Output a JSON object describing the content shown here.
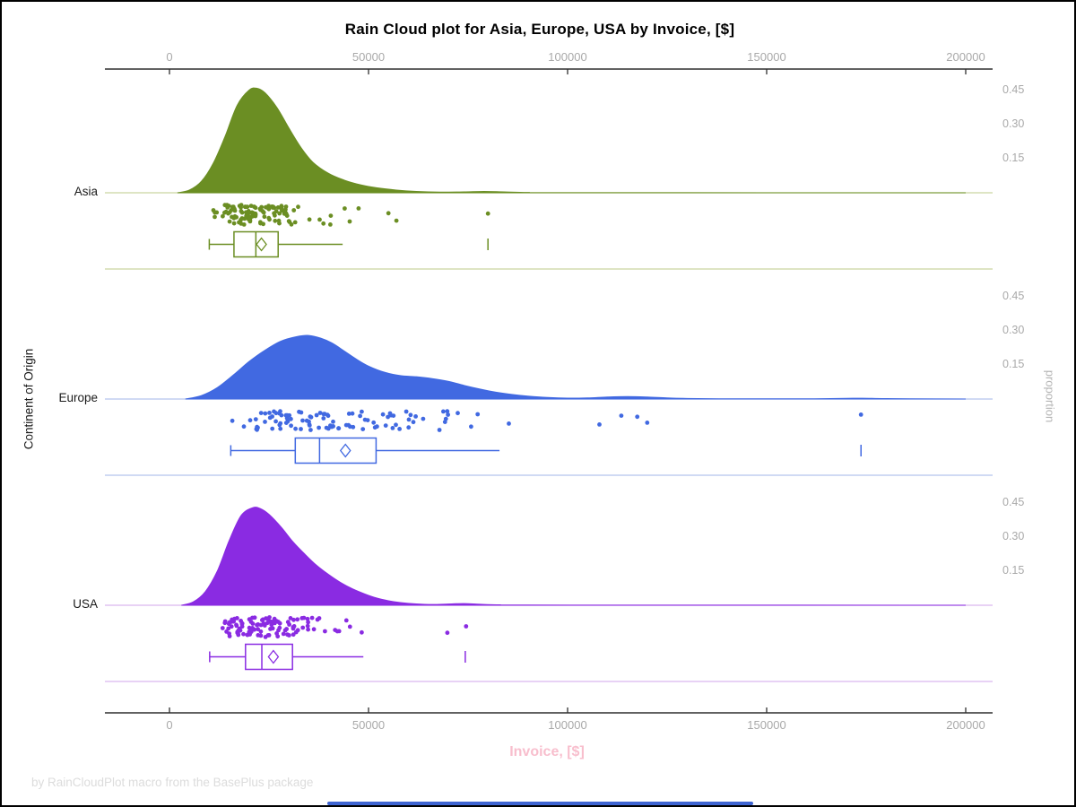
{
  "footer": "by RainCloudPlot macro from the BasePlus package",
  "style": {
    "tick_label_color": "#a9a9a9",
    "axis_line_color": "#2f2f2f",
    "title_color": "#000000",
    "x_label_color": "#f8becd",
    "footer_color": "#dcdcdc",
    "scrollbar_color": "#3e64d1",
    "border_color": "#000000",
    "background": "#ffffff"
  },
  "chart_data": {
    "type": "raincloud (half-violin density + jittered points + boxplot)",
    "title": "Rain Cloud plot for Asia, Europe, USA by Invoice, [$]",
    "xlabel": "Invoice, [$]",
    "ylabel_left": "Continent of Origin",
    "ylabel_right": "proportion",
    "xlim": [
      0,
      200000
    ],
    "x_ticks": [
      0,
      50000,
      100000,
      150000,
      200000
    ],
    "x_tick_labels": [
      "0",
      "50000",
      "100000",
      "150000",
      "200000"
    ],
    "proportion_tick_labels": [
      "0.45",
      "0.30",
      "0.15"
    ],
    "categories": [
      "Asia",
      "Europe",
      "USA"
    ],
    "grid": false,
    "legend": false,
    "series": [
      {
        "name": "Asia",
        "color": "#6b8e23",
        "light_color": "#c9d5a0",
        "density_peak": {
          "x": 21000,
          "proportion": 0.46
        },
        "density": [
          [
            2000,
            0
          ],
          [
            5000,
            0.012
          ],
          [
            8000,
            0.05
          ],
          [
            11000,
            0.13
          ],
          [
            14000,
            0.25
          ],
          [
            17000,
            0.385
          ],
          [
            20000,
            0.452
          ],
          [
            22000,
            0.46
          ],
          [
            24000,
            0.44
          ],
          [
            27000,
            0.375
          ],
          [
            30000,
            0.285
          ],
          [
            33000,
            0.2
          ],
          [
            36000,
            0.135
          ],
          [
            40000,
            0.085
          ],
          [
            44000,
            0.055
          ],
          [
            48000,
            0.035
          ],
          [
            52000,
            0.022
          ],
          [
            57000,
            0.012
          ],
          [
            62000,
            0.006
          ],
          [
            68000,
            0.003
          ],
          [
            74000,
            0.004
          ],
          [
            79000,
            0.006
          ],
          [
            84000,
            0.004
          ],
          [
            90000,
            0.0015
          ],
          [
            100000,
            0.0005
          ],
          [
            200000,
            0
          ]
        ],
        "box": {
          "whisker_low": 10000,
          "q1": 16200,
          "median": 21700,
          "mean": 23100,
          "q3": 27300,
          "whisker_high": 43500,
          "outliers": [
            80000
          ]
        },
        "rain": {
          "n": 112,
          "log_mu": 10.0,
          "log_sigma": 0.3,
          "clip": [
            10000,
            58000
          ],
          "extra_points": [
            44000,
            47500,
            55000,
            57000,
            80000
          ],
          "seed": 11
        }
      },
      {
        "name": "Europe",
        "color": "#4169e1",
        "light_color": "#b3c3ee",
        "density_peak": {
          "x": 35000,
          "proportion": 0.28
        },
        "density": [
          [
            4000,
            0
          ],
          [
            8000,
            0.015
          ],
          [
            12000,
            0.05
          ],
          [
            16000,
            0.105
          ],
          [
            20000,
            0.165
          ],
          [
            24000,
            0.215
          ],
          [
            28000,
            0.255
          ],
          [
            32000,
            0.275
          ],
          [
            35000,
            0.28
          ],
          [
            38000,
            0.268
          ],
          [
            41000,
            0.245
          ],
          [
            44000,
            0.21
          ],
          [
            47000,
            0.175
          ],
          [
            50000,
            0.145
          ],
          [
            54000,
            0.118
          ],
          [
            58000,
            0.103
          ],
          [
            62000,
            0.098
          ],
          [
            66000,
            0.09
          ],
          [
            70000,
            0.078
          ],
          [
            74000,
            0.06
          ],
          [
            78000,
            0.044
          ],
          [
            82000,
            0.03
          ],
          [
            86000,
            0.02
          ],
          [
            90000,
            0.013
          ],
          [
            95000,
            0.007
          ],
          [
            100000,
            0.004
          ],
          [
            105000,
            0.005
          ],
          [
            110000,
            0.009
          ],
          [
            115000,
            0.011
          ],
          [
            120000,
            0.009
          ],
          [
            125000,
            0.005
          ],
          [
            130000,
            0.0025
          ],
          [
            138000,
            0.001
          ],
          [
            150000,
            0.0008
          ],
          [
            162000,
            0.0012
          ],
          [
            170000,
            0.0028
          ],
          [
            174000,
            0.0035
          ],
          [
            179000,
            0.002
          ],
          [
            186000,
            0.0008
          ],
          [
            200000,
            0
          ]
        ],
        "box": {
          "whisker_low": 15400,
          "q1": 31600,
          "median": 37700,
          "mean": 44200,
          "q3": 51900,
          "whisker_high": 82900,
          "outliers": [
            173700
          ]
        },
        "rain": {
          "n": 100,
          "log_mu": 10.56,
          "log_sigma": 0.4,
          "clip": [
            15500,
            90000
          ],
          "extra_points": [
            108000,
            113500,
            117500,
            120000,
            173700
          ],
          "seed": 23
        }
      },
      {
        "name": "USA",
        "color": "#8a2be2",
        "light_color": "#d9b8ef",
        "density_peak": {
          "x": 21000,
          "proportion": 0.43
        },
        "density": [
          [
            3000,
            0
          ],
          [
            6000,
            0.015
          ],
          [
            9000,
            0.06
          ],
          [
            12000,
            0.15
          ],
          [
            15000,
            0.285
          ],
          [
            18000,
            0.395
          ],
          [
            21000,
            0.43
          ],
          [
            23000,
            0.424
          ],
          [
            25000,
            0.4
          ],
          [
            28000,
            0.345
          ],
          [
            31000,
            0.28
          ],
          [
            34000,
            0.225
          ],
          [
            37000,
            0.175
          ],
          [
            40000,
            0.135
          ],
          [
            43000,
            0.1
          ],
          [
            46000,
            0.072
          ],
          [
            49000,
            0.05
          ],
          [
            52000,
            0.032
          ],
          [
            55000,
            0.02
          ],
          [
            58000,
            0.012
          ],
          [
            62000,
            0.006
          ],
          [
            66000,
            0.0035
          ],
          [
            70000,
            0.0055
          ],
          [
            74000,
            0.0075
          ],
          [
            78000,
            0.0045
          ],
          [
            83000,
            0.002
          ],
          [
            90000,
            0.0008
          ],
          [
            200000,
            0
          ]
        ],
        "box": {
          "whisker_low": 10100,
          "q1": 19100,
          "median": 23200,
          "mean": 26100,
          "q3": 30900,
          "whisker_high": 48700,
          "outliers": [
            74300
          ]
        },
        "rain": {
          "n": 112,
          "log_mu": 10.06,
          "log_sigma": 0.32,
          "clip": [
            10000,
            52000
          ],
          "extra_points": [
            69800,
            74500
          ],
          "seed": 37
        }
      }
    ]
  }
}
